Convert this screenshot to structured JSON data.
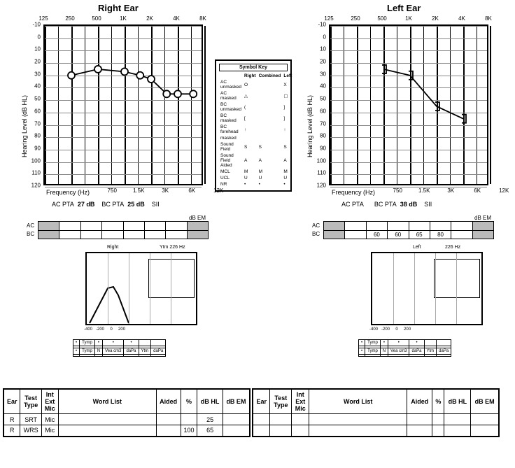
{
  "titles": {
    "right": "Right Ear",
    "left": "Left Ear"
  },
  "freq_labels_top": [
    "125",
    "250",
    "500",
    "1K",
    "2K",
    "4K",
    "8K"
  ],
  "freq_labels_bot": [
    "750",
    "1.5K",
    "3K",
    "6K",
    "12K"
  ],
  "hl_labels": [
    "-10",
    "0",
    "10",
    "20",
    "30",
    "40",
    "50",
    "60",
    "70",
    "80",
    "90",
    "100",
    "110",
    "120"
  ],
  "axis": {
    "y": "Hearing Level (dB HL)",
    "x": "Frequency (Hz)"
  },
  "grid": {
    "bg": "#ffffff",
    "line": "#888",
    "freq_cols": 7,
    "hl_range": {
      "min": -10,
      "max": 120,
      "step": 10
    }
  },
  "right": {
    "ac": {
      "marker": "circle",
      "color": "#000",
      "points": [
        {
          "f": 250,
          "db": 30
        },
        {
          "f": 500,
          "db": 25
        },
        {
          "f": 1000,
          "db": 27
        },
        {
          "f": 1500,
          "db": 30
        },
        {
          "f": 2000,
          "db": 33
        },
        {
          "f": 3000,
          "db": 45
        },
        {
          "f": 4000,
          "db": 45
        },
        {
          "f": 6000,
          "db": 45
        }
      ]
    },
    "pta": {
      "ac": "AC PTA",
      "ac_val": "27 dB",
      "bc": "BC PTA",
      "bc_val": "25 dB",
      "sii": "SII"
    },
    "em": {
      "header": "dB EM",
      "rows": [
        "AC",
        "BC"
      ],
      "cols": 8,
      "shaded_cols": [
        0,
        7
      ],
      "values": {}
    },
    "tymp": {
      "side_label": "Right",
      "freq_label": "Ytm   226 Hz"
    },
    "reflex": {
      "rows": [
        [
          "Tymp",
          "Volume",
          "Compliance",
          "Pressure"
        ],
        [
          "",
          "",
          "",
          ""
        ]
      ]
    }
  },
  "left": {
    "bc": {
      "marker": "rbracket",
      "color": "#000",
      "points": [
        {
          "f": 500,
          "db": 25
        },
        {
          "f": 1000,
          "db": 30
        },
        {
          "f": 2000,
          "db": 55
        },
        {
          "f": 4000,
          "db": 65
        }
      ]
    },
    "pta": {
      "ac": "AC PTA",
      "ac_val": "",
      "bc": "BC PTA",
      "bc_val": "38 dB",
      "sii": "SII"
    },
    "em": {
      "header": "dB EM",
      "rows": [
        "AC",
        "BC"
      ],
      "cols": 8,
      "shaded_cols": [
        0,
        7
      ],
      "values": {
        "BC": {
          "2": "60",
          "3": "60",
          "4": "65",
          "5": "80"
        }
      }
    },
    "tymp": {
      "side_label": "Left",
      "freq_label": "226 Hz"
    },
    "reflex": {
      "rows": [
        [
          "Tymp",
          "Volume",
          "Compliance",
          "Pressure"
        ],
        [
          "",
          "",
          "",
          ""
        ]
      ]
    }
  },
  "legend": {
    "title": "Symbol Key",
    "cols": [
      "",
      "Right",
      "Combined",
      "Left"
    ],
    "rows": [
      [
        "AC unmasked",
        "O",
        "",
        "X"
      ],
      [
        "AC masked",
        "△",
        "",
        "▢"
      ],
      [
        "BC unmasked",
        "(",
        "",
        "]"
      ],
      [
        "BC masked",
        "[",
        "",
        "]"
      ],
      [
        "BC forehead",
        "↑",
        "",
        "↑"
      ],
      [
        "masked",
        "",
        "",
        ""
      ],
      [
        "Sound Field",
        "S",
        "S",
        "S"
      ],
      [
        "Sound Field Aided",
        "A",
        "A",
        "A"
      ],
      [
        "MCL",
        "M",
        "M",
        "M"
      ],
      [
        "UCL",
        "U",
        "U",
        "U"
      ],
      [
        "NR",
        "•",
        "•",
        "•"
      ]
    ]
  },
  "word_tables": {
    "headers": [
      "Ear",
      "Test\nType",
      "Int\nExt\nMic",
      "Word List",
      "Aided",
      "%",
      "dB HL",
      "dB EM"
    ],
    "right_rows": [
      [
        "R",
        "SRT",
        "Mic",
        "",
        "",
        "",
        "25",
        ""
      ],
      [
        "R",
        "WRS",
        "Mic",
        "",
        "",
        "100",
        "65",
        ""
      ]
    ],
    "left_rows": []
  },
  "colors": {
    "shade": "#bbbbbb",
    "border": "#000000"
  }
}
